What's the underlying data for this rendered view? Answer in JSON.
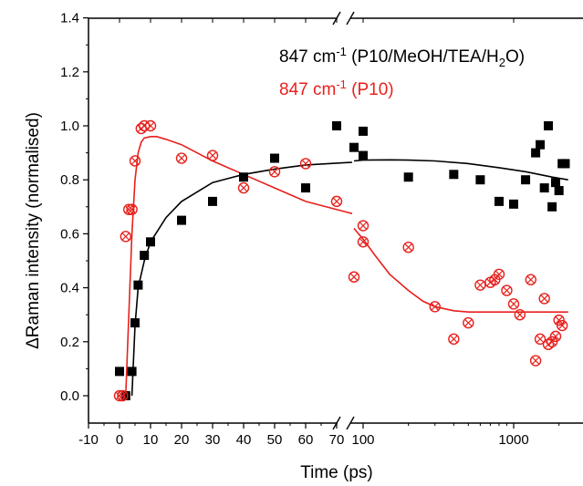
{
  "chart_data": {
    "type": "scatter",
    "xlabel": "Time (ps)",
    "ylabel": "ΔRaman intensity (normalised)",
    "x_axis": "broken: linear from -10 to 75, then logarithmic above the break",
    "xlim": [
      -10,
      2300
    ],
    "ylim": [
      -0.1,
      1.4
    ],
    "x_ticks_linear": [
      "-10",
      "0",
      "10",
      "20",
      "30",
      "40",
      "50",
      "60",
      "70"
    ],
    "x_ticks_log": [
      "100",
      "1000"
    ],
    "y_ticks": [
      "0.0",
      "0.2",
      "0.4",
      "0.6",
      "0.8",
      "1.0",
      "1.2",
      "1.4"
    ],
    "grid": false,
    "legend_position": "top-right",
    "legend": [
      {
        "name": "847 cm",
        "sup": "-1",
        "tail": " (P10/MeOH/TEA/H",
        "sub": "2",
        "end": "O)",
        "color": "#000000"
      },
      {
        "name": "847 cm",
        "sup": "-1",
        "tail": " (P10)",
        "sub": "",
        "end": "",
        "color": "#e8201c"
      }
    ],
    "series": [
      {
        "name": "847 cm-1 (P10/MeOH/TEA/H2O)",
        "marker": "filled-square",
        "color": "#000000",
        "x": [
          0,
          2,
          4,
          5,
          6,
          8,
          10,
          20,
          30,
          40,
          50,
          60,
          70,
          90,
          95,
          100,
          200,
          400,
          600,
          800,
          1000,
          1200,
          1400,
          1500,
          1600,
          1700,
          1800,
          1900,
          2000,
          2100,
          2200
        ],
        "y": [
          0.09,
          0.0,
          0.09,
          0.27,
          0.41,
          0.52,
          0.57,
          0.65,
          0.72,
          0.81,
          0.88,
          0.77,
          1.0,
          0.92,
          0.98,
          0.89,
          0.81,
          0.82,
          0.8,
          0.72,
          0.71,
          0.8,
          0.9,
          0.93,
          0.77,
          1.0,
          0.7,
          0.79,
          0.76,
          0.86,
          0.86
        ]
      },
      {
        "name": "847 cm-1 (P10)",
        "marker": "circle-cross",
        "color": "#e8201c",
        "x": [
          0,
          1,
          2,
          3,
          4,
          5,
          7,
          8,
          10,
          20,
          30,
          40,
          50,
          60,
          70,
          90,
          95,
          100,
          200,
          300,
          400,
          500,
          600,
          700,
          750,
          800,
          900,
          1000,
          1100,
          1300,
          1400,
          1500,
          1600,
          1700,
          1800,
          1900,
          2000,
          2100
        ],
        "y": [
          0.0,
          0.0,
          0.59,
          0.69,
          0.69,
          0.87,
          0.99,
          1.0,
          1.0,
          0.88,
          0.89,
          0.77,
          0.83,
          0.86,
          0.72,
          0.44,
          0.63,
          0.57,
          0.55,
          0.33,
          0.21,
          0.27,
          0.41,
          0.42,
          0.43,
          0.45,
          0.39,
          0.34,
          0.3,
          0.43,
          0.13,
          0.21,
          0.36,
          0.19,
          0.2,
          0.22,
          0.28,
          0.26
        ]
      }
    ],
    "fits": [
      {
        "series": "847 cm-1 (P10/MeOH/TEA/H2O)",
        "color": "#000000",
        "x": [
          4,
          5,
          6,
          8,
          10,
          15,
          20,
          30,
          40,
          50,
          60,
          75,
          90,
          100,
          150,
          200,
          300,
          500,
          800,
          1200,
          1800,
          2300
        ],
        "y": [
          0.0,
          0.26,
          0.4,
          0.5,
          0.57,
          0.66,
          0.72,
          0.79,
          0.82,
          0.84,
          0.855,
          0.865,
          0.87,
          0.873,
          0.874,
          0.873,
          0.87,
          0.86,
          0.845,
          0.83,
          0.81,
          0.8
        ]
      },
      {
        "series": "847 cm-1 (P10)",
        "color": "#e8201c",
        "x": [
          2,
          3,
          4,
          5,
          6,
          7,
          8,
          10,
          12,
          15,
          20,
          30,
          40,
          50,
          60,
          75,
          90,
          100,
          120,
          150,
          200,
          250,
          300,
          400,
          500,
          700,
          1000,
          1500,
          2300
        ],
        "y": [
          0.0,
          0.3,
          0.6,
          0.8,
          0.9,
          0.94,
          0.955,
          0.96,
          0.96,
          0.95,
          0.93,
          0.87,
          0.82,
          0.77,
          0.72,
          0.675,
          0.62,
          0.58,
          0.52,
          0.45,
          0.39,
          0.35,
          0.33,
          0.315,
          0.31,
          0.31,
          0.31,
          0.31,
          0.31
        ]
      }
    ]
  }
}
